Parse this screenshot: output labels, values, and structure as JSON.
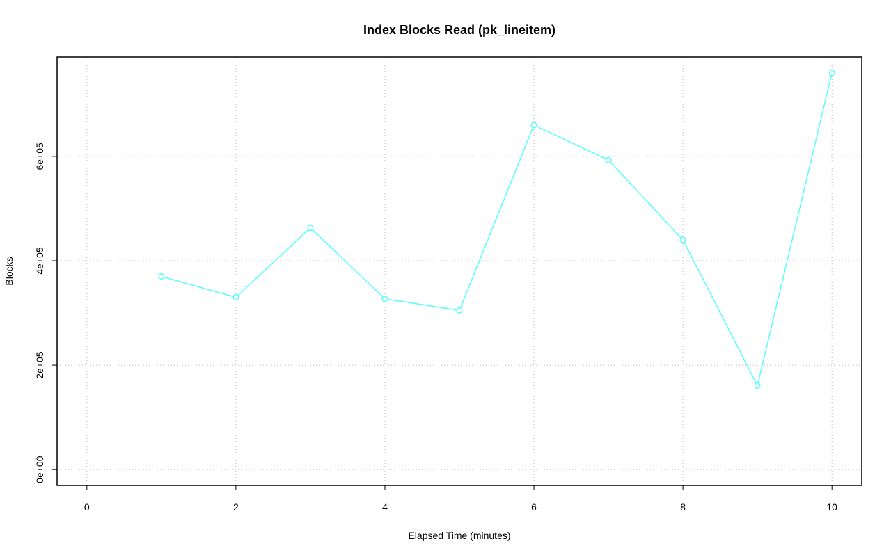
{
  "chart_data": {
    "type": "line",
    "title": "Index Blocks Read (pk_lineitem)",
    "xlabel": "Elapsed Time (minutes)",
    "ylabel": "Blocks",
    "x": [
      1,
      2,
      3,
      4,
      5,
      6,
      7,
      8,
      9,
      10
    ],
    "values": [
      370000,
      330000,
      463000,
      327000,
      305000,
      660000,
      593000,
      440000,
      161000,
      760000
    ],
    "color": "#55ffff",
    "xlim": [
      -0.4,
      10.4
    ],
    "xticks": [
      0,
      2,
      4,
      6,
      8,
      10
    ],
    "ylim": [
      -30400,
      790400
    ],
    "yticks": [
      {
        "value": 0,
        "label": "0e+00"
      },
      {
        "value": 200000,
        "label": "2e+05"
      },
      {
        "value": 400000,
        "label": "4e+05"
      },
      {
        "value": 600000,
        "label": "6e+05"
      }
    ],
    "grid": true
  }
}
